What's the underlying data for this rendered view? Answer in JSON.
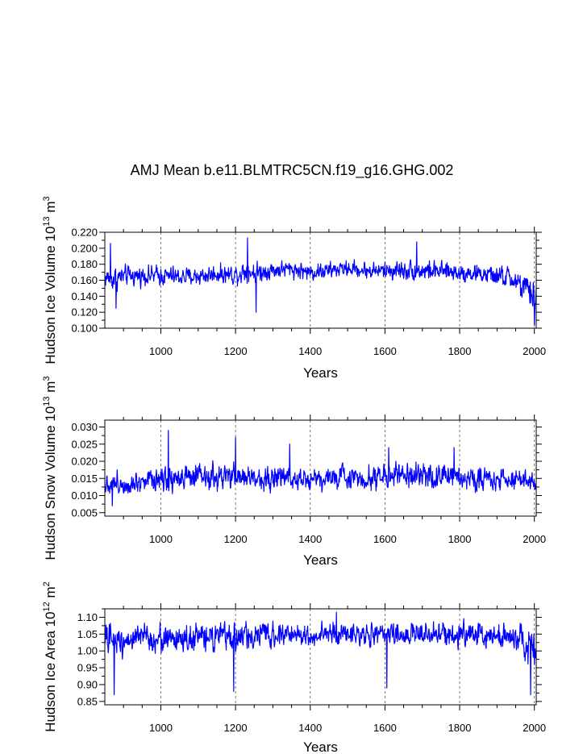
{
  "title": "AMJ Mean b.e11.BLMTRC5CN.f19_g16.GHG.002",
  "chart_data": [
    {
      "type": "line",
      "name": "ice-volume",
      "ylabel": "Hudson Ice Volume 10",
      "ylabel_exp": "13",
      "ylabel_unit": " m",
      "ylabel_unit_exp": "3",
      "xlabel": "Years",
      "color": "#0000ff",
      "xlim": [
        850,
        2005
      ],
      "ylim": [
        0.1,
        0.22
      ],
      "xticks": [
        1000,
        1200,
        1400,
        1600,
        1800,
        2000
      ],
      "xtick_labels": [
        "1000",
        "1200",
        "1400",
        "1600",
        "1800",
        "2000"
      ],
      "yticks": [
        0.1,
        0.12,
        0.14,
        0.16,
        0.18,
        0.2,
        0.22
      ],
      "ytick_labels": [
        "0.100",
        "0.120",
        "0.140",
        "0.160",
        "0.180",
        "0.200",
        "0.220"
      ],
      "series_envelope": {
        "x": [
          850,
          875,
          900,
          950,
          1000,
          1050,
          1100,
          1150,
          1200,
          1230,
          1250,
          1300,
          1350,
          1400,
          1450,
          1500,
          1550,
          1600,
          1650,
          1700,
          1750,
          1800,
          1850,
          1900,
          1940,
          1970,
          2005
        ],
        "mean": [
          0.163,
          0.162,
          0.165,
          0.166,
          0.166,
          0.164,
          0.165,
          0.168,
          0.167,
          0.173,
          0.169,
          0.173,
          0.174,
          0.17,
          0.172,
          0.175,
          0.172,
          0.172,
          0.173,
          0.172,
          0.171,
          0.17,
          0.168,
          0.165,
          0.162,
          0.15,
          0.138
        ],
        "amplitude": [
          0.013,
          0.017,
          0.013,
          0.012,
          0.013,
          0.012,
          0.012,
          0.012,
          0.013,
          0.016,
          0.014,
          0.011,
          0.011,
          0.012,
          0.011,
          0.01,
          0.011,
          0.012,
          0.013,
          0.013,
          0.012,
          0.012,
          0.012,
          0.013,
          0.016,
          0.02,
          0.024
        ]
      },
      "noted_extremes": [
        {
          "year": 865,
          "value": 0.206
        },
        {
          "year": 880,
          "value": 0.125
        },
        {
          "year": 1232,
          "value": 0.213
        },
        {
          "year": 1255,
          "value": 0.12
        },
        {
          "year": 1685,
          "value": 0.208
        },
        {
          "year": 2000,
          "value": 0.104
        }
      ]
    },
    {
      "type": "line",
      "name": "snow-volume",
      "ylabel": "Hudson Snow Volume 10",
      "ylabel_exp": "13",
      "ylabel_unit": " m",
      "ylabel_unit_exp": "3",
      "xlabel": "Years",
      "color": "#0000ff",
      "xlim": [
        850,
        2005
      ],
      "ylim": [
        0.004,
        0.032
      ],
      "xticks": [
        1000,
        1200,
        1400,
        1600,
        1800,
        2000
      ],
      "xtick_labels": [
        "1000",
        "1200",
        "1400",
        "1600",
        "1800",
        "2000"
      ],
      "yticks": [
        0.005,
        0.01,
        0.015,
        0.02,
        0.025,
        0.03
      ],
      "ytick_labels": [
        "0.005",
        "0.010",
        "0.015",
        "0.020",
        "0.025",
        "0.030"
      ],
      "series_envelope": {
        "x": [
          850,
          900,
          950,
          1000,
          1050,
          1100,
          1150,
          1200,
          1250,
          1300,
          1350,
          1400,
          1450,
          1500,
          1550,
          1600,
          1650,
          1700,
          1750,
          1800,
          1850,
          1900,
          1950,
          2005
        ],
        "mean": [
          0.0135,
          0.0135,
          0.0145,
          0.0155,
          0.015,
          0.015,
          0.015,
          0.0155,
          0.015,
          0.015,
          0.0155,
          0.015,
          0.015,
          0.0155,
          0.015,
          0.016,
          0.0155,
          0.0155,
          0.0155,
          0.0155,
          0.015,
          0.015,
          0.0145,
          0.014
        ],
        "amplitude": [
          0.003,
          0.0035,
          0.0035,
          0.0045,
          0.004,
          0.0038,
          0.0038,
          0.004,
          0.0035,
          0.0035,
          0.0038,
          0.0035,
          0.0035,
          0.0035,
          0.0035,
          0.004,
          0.0038,
          0.0035,
          0.0038,
          0.0035,
          0.0035,
          0.0035,
          0.0032,
          0.003
        ]
      },
      "noted_extremes": [
        {
          "year": 1020,
          "value": 0.029
        },
        {
          "year": 1200,
          "value": 0.027
        },
        {
          "year": 1345,
          "value": 0.025
        },
        {
          "year": 1610,
          "value": 0.024
        },
        {
          "year": 1785,
          "value": 0.024
        },
        {
          "year": 870,
          "value": 0.007
        }
      ]
    },
    {
      "type": "line",
      "name": "ice-area",
      "ylabel": "Hudson Ice Area 10",
      "ylabel_exp": "12",
      "ylabel_unit": " m",
      "ylabel_unit_exp": "2",
      "xlabel": "Years",
      "color": "#0000ff",
      "xlim": [
        850,
        2005
      ],
      "ylim": [
        0.84,
        1.125
      ],
      "xticks": [
        1000,
        1200,
        1400,
        1600,
        1800,
        2000
      ],
      "xtick_labels": [
        "1000",
        "1200",
        "1400",
        "1600",
        "1800",
        "2000"
      ],
      "yticks": [
        0.85,
        0.9,
        0.95,
        1.0,
        1.05,
        1.1
      ],
      "ytick_labels": [
        "0.85",
        "0.90",
        "0.95",
        "1.00",
        "1.05",
        "1.10"
      ],
      "series_envelope": {
        "x": [
          850,
          900,
          950,
          1000,
          1050,
          1100,
          1150,
          1200,
          1250,
          1300,
          1350,
          1400,
          1450,
          1500,
          1550,
          1600,
          1650,
          1700,
          1750,
          1800,
          1850,
          1900,
          1950,
          1980,
          2005
        ],
        "mean": [
          1.03,
          1.035,
          1.04,
          1.035,
          1.035,
          1.04,
          1.04,
          1.04,
          1.045,
          1.05,
          1.05,
          1.045,
          1.05,
          1.05,
          1.05,
          1.045,
          1.05,
          1.05,
          1.05,
          1.05,
          1.05,
          1.045,
          1.04,
          1.02,
          0.99
        ],
        "amplitude": [
          0.05,
          0.045,
          0.04,
          0.045,
          0.045,
          0.04,
          0.04,
          0.045,
          0.04,
          0.035,
          0.035,
          0.04,
          0.035,
          0.035,
          0.035,
          0.04,
          0.035,
          0.035,
          0.035,
          0.035,
          0.035,
          0.04,
          0.045,
          0.06,
          0.07
        ]
      },
      "noted_extremes": [
        {
          "year": 875,
          "value": 0.87
        },
        {
          "year": 1195,
          "value": 0.88
        },
        {
          "year": 1605,
          "value": 0.89
        },
        {
          "year": 1990,
          "value": 0.87
        },
        {
          "year": 1470,
          "value": 1.115
        }
      ]
    }
  ]
}
